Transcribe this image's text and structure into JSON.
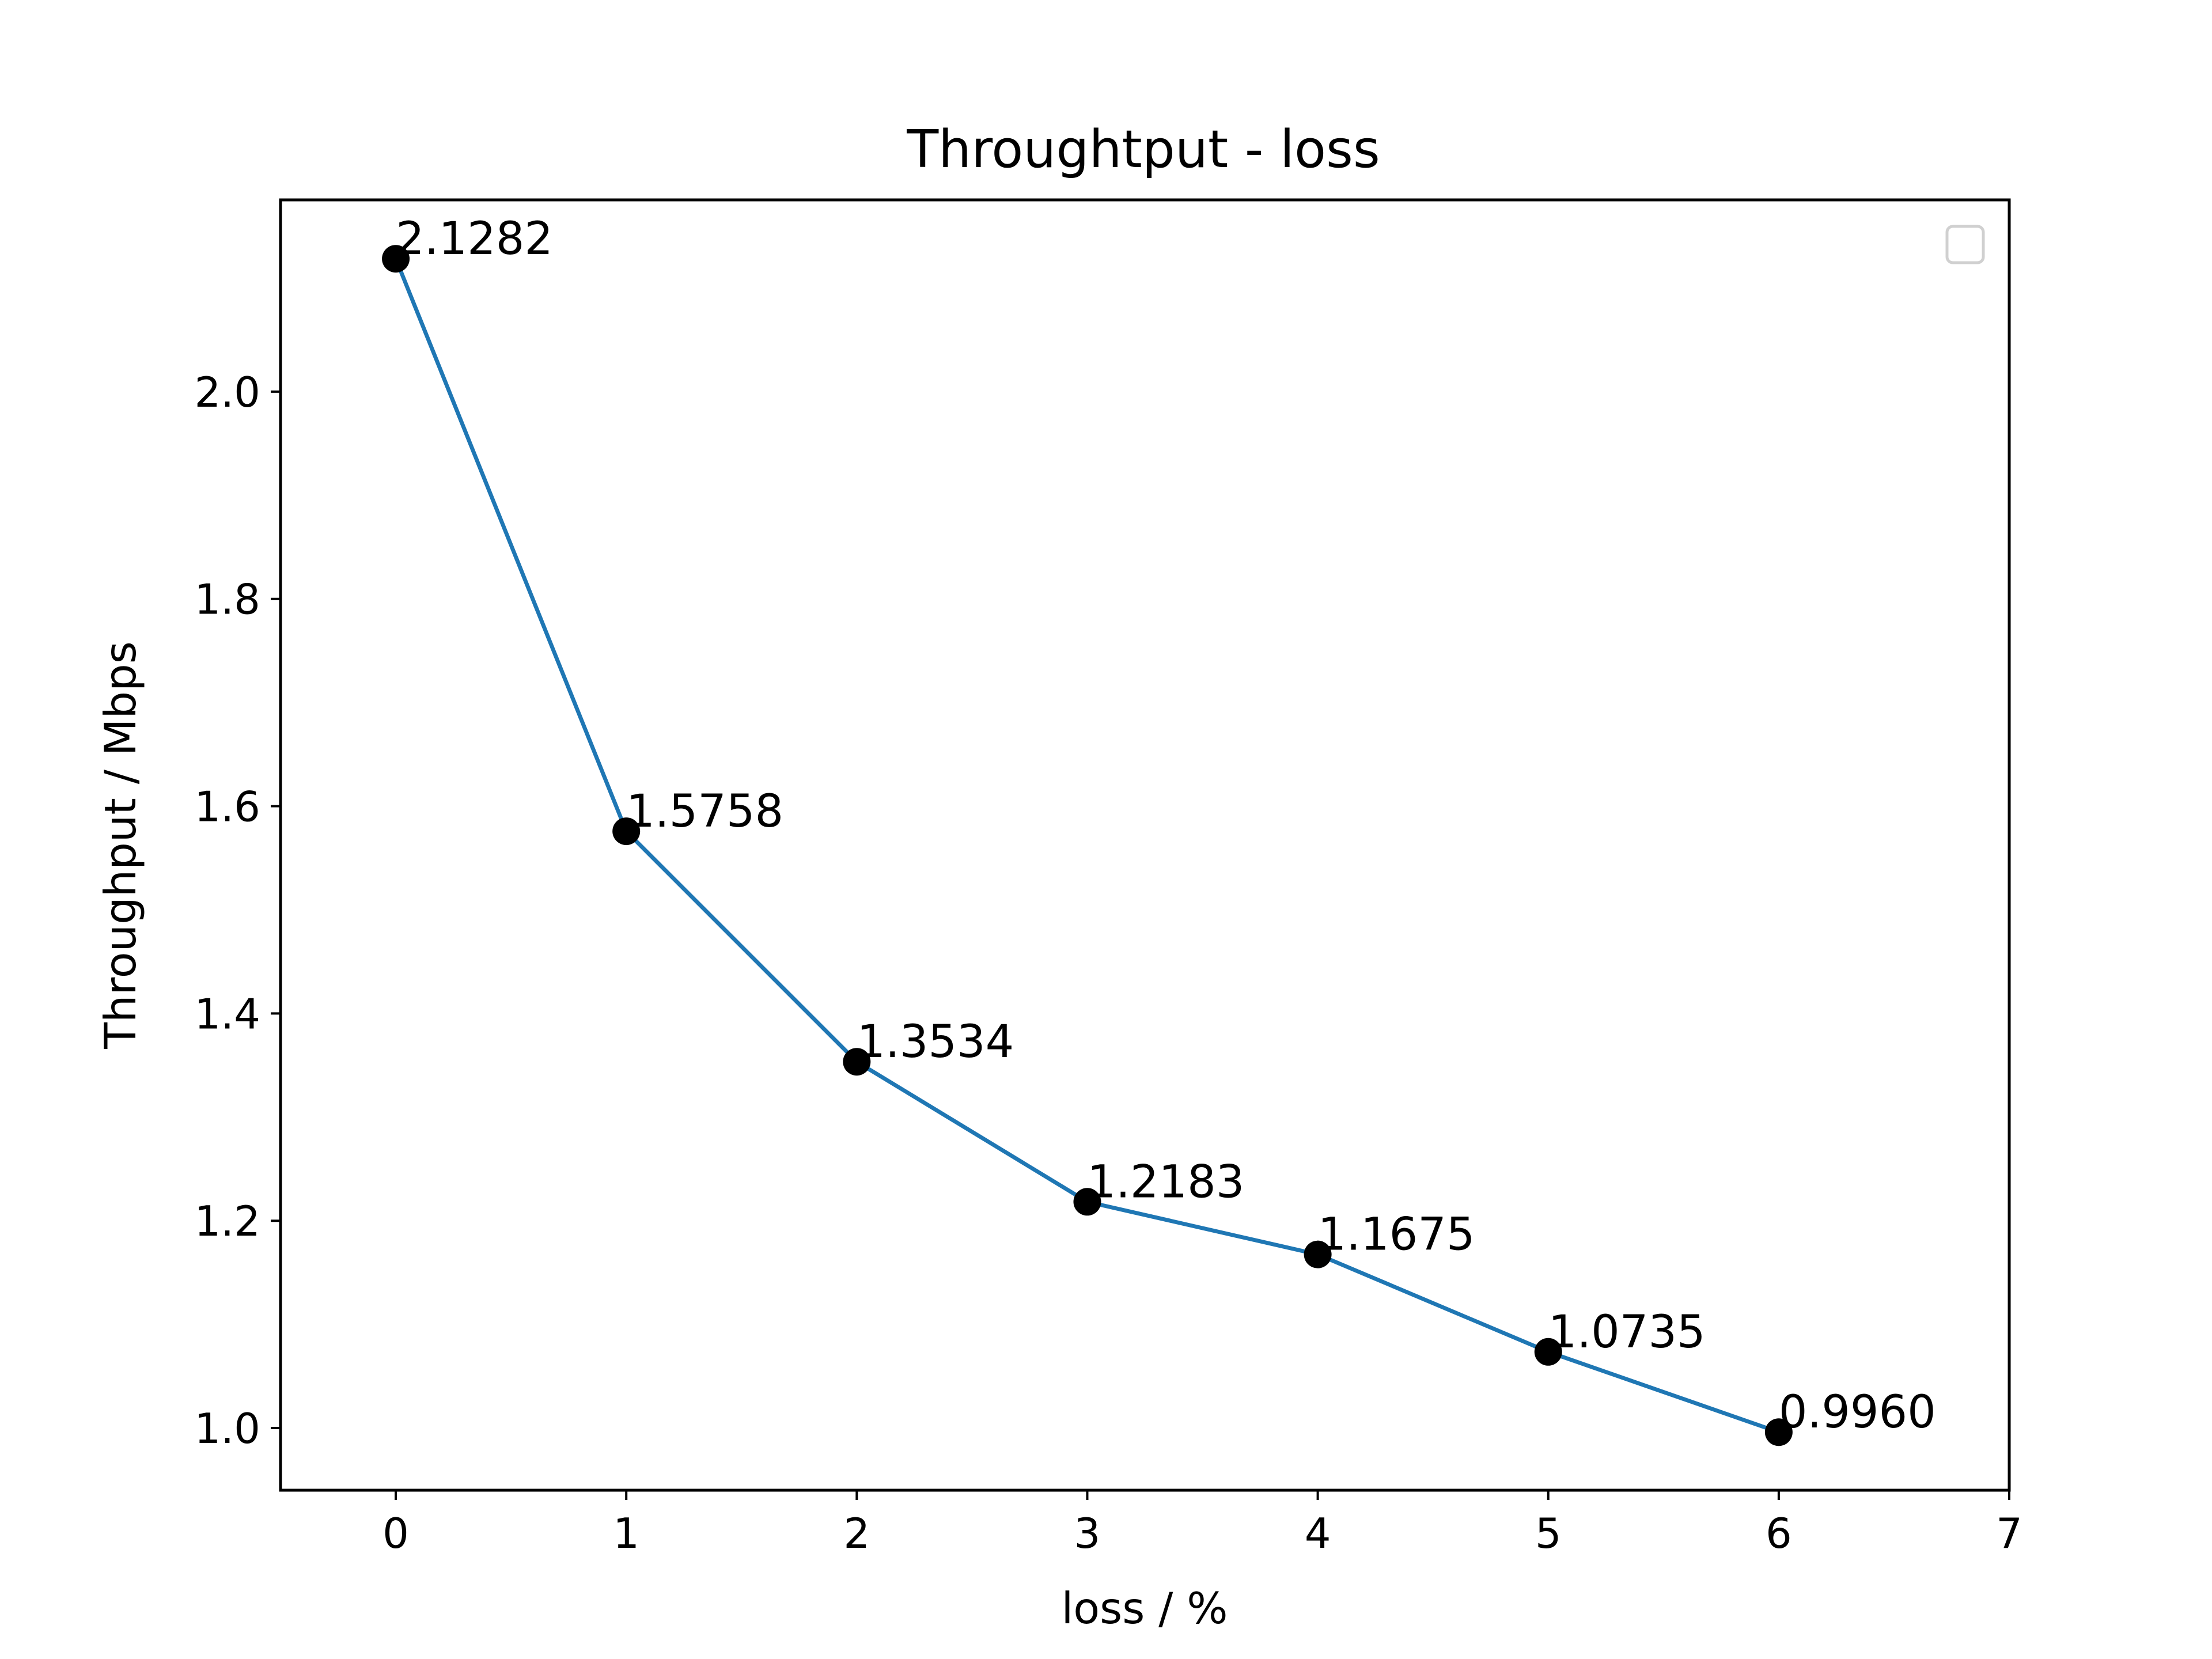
{
  "chart_data": {
    "type": "line",
    "title": "Throughtput - loss",
    "xlabel": "loss / %",
    "ylabel": "Throughput / Mbps",
    "xlim": [
      -0.5,
      7
    ],
    "ylim": [
      0.94,
      2.185
    ],
    "xticks": [
      0,
      1,
      2,
      3,
      4,
      5,
      6,
      7
    ],
    "yticks": [
      1.0,
      1.2,
      1.4,
      1.6,
      1.8,
      2.0
    ],
    "ytick_labels": [
      "1.0",
      "1.2",
      "1.4",
      "1.6",
      "1.8",
      "2.0"
    ],
    "grid": false,
    "legend": {
      "position": "top-right",
      "entries": []
    },
    "series": [
      {
        "x": [
          0,
          1,
          2,
          3,
          4,
          5,
          6
        ],
        "y": [
          2.1282,
          1.5758,
          1.3534,
          1.2183,
          1.1675,
          1.0735,
          0.996
        ],
        "labels": [
          "2.1282",
          "1.5758",
          "1.3534",
          "1.2183",
          "1.1675",
          "1.0735",
          "0.9960"
        ],
        "line_color": "#1f77b4",
        "marker_color": "#000000"
      }
    ]
  }
}
